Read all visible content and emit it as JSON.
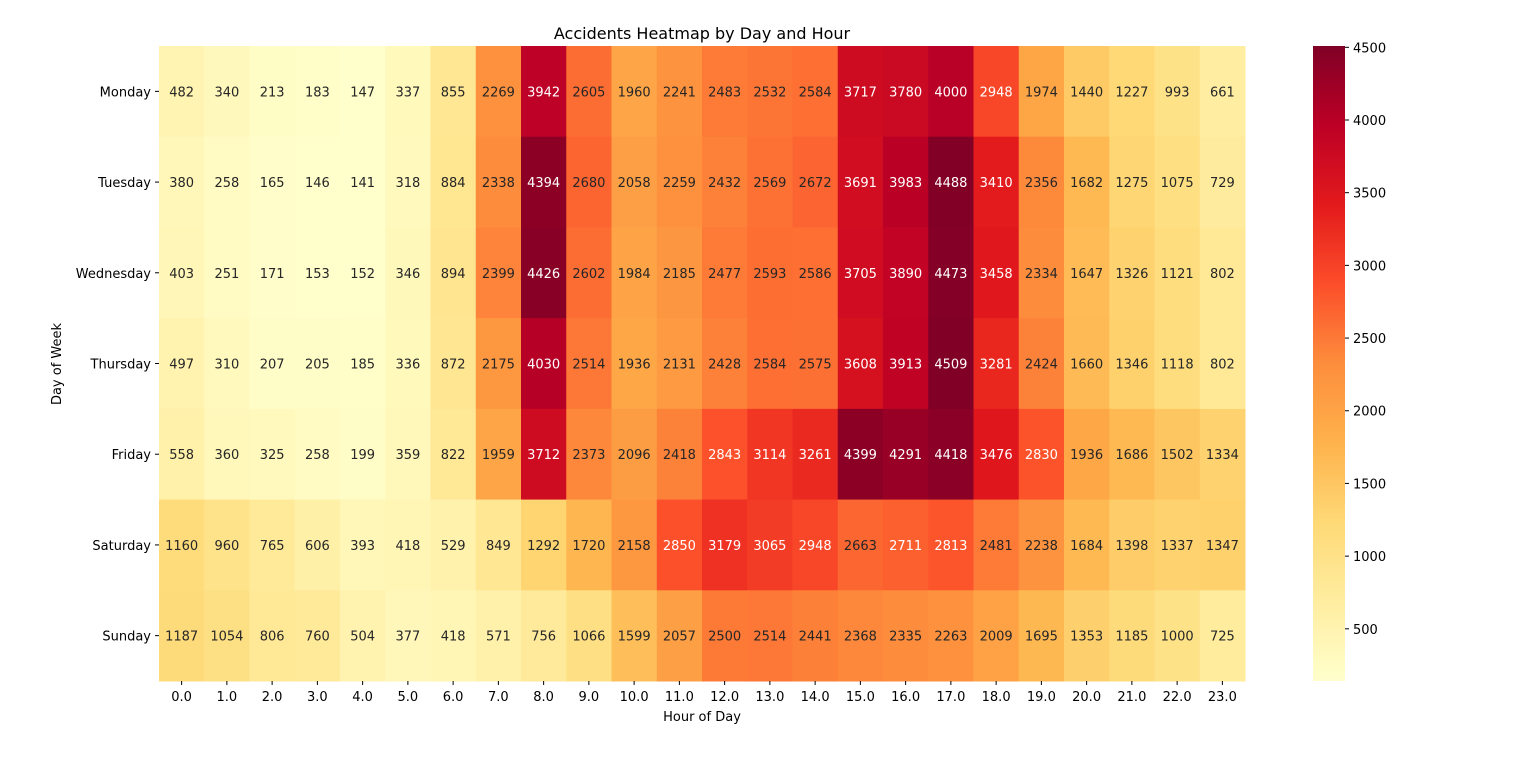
{
  "chart_data": {
    "type": "heatmap",
    "title": "Accidents Heatmap by Day and Hour",
    "xlabel": "Hour of Day",
    "ylabel": "Day of Week",
    "x_categories": [
      "0.0",
      "1.0",
      "2.0",
      "3.0",
      "4.0",
      "5.0",
      "6.0",
      "7.0",
      "8.0",
      "9.0",
      "10.0",
      "11.0",
      "12.0",
      "13.0",
      "14.0",
      "15.0",
      "16.0",
      "17.0",
      "18.0",
      "19.0",
      "20.0",
      "21.0",
      "22.0",
      "23.0"
    ],
    "y_categories": [
      "Monday",
      "Tuesday",
      "Wednesday",
      "Thursday",
      "Friday",
      "Saturday",
      "Sunday"
    ],
    "values": [
      [
        482,
        340,
        213,
        183,
        147,
        337,
        855,
        2269,
        3942,
        2605,
        1960,
        2241,
        2483,
        2532,
        2584,
        3717,
        3780,
        4000,
        2948,
        1974,
        1440,
        1227,
        993,
        661
      ],
      [
        380,
        258,
        165,
        146,
        141,
        318,
        884,
        2338,
        4394,
        2680,
        2058,
        2259,
        2432,
        2569,
        2672,
        3691,
        3983,
        4488,
        3410,
        2356,
        1682,
        1275,
        1075,
        729
      ],
      [
        403,
        251,
        171,
        153,
        152,
        346,
        894,
        2399,
        4426,
        2602,
        1984,
        2185,
        2477,
        2593,
        2586,
        3705,
        3890,
        4473,
        3458,
        2334,
        1647,
        1326,
        1121,
        802
      ],
      [
        497,
        310,
        207,
        205,
        185,
        336,
        872,
        2175,
        4030,
        2514,
        1936,
        2131,
        2428,
        2584,
        2575,
        3608,
        3913,
        4509,
        3281,
        2424,
        1660,
        1346,
        1118,
        802
      ],
      [
        558,
        360,
        325,
        258,
        199,
        359,
        822,
        1959,
        3712,
        2373,
        2096,
        2418,
        2843,
        3114,
        3261,
        4399,
        4291,
        4418,
        3476,
        2830,
        1936,
        1686,
        1502,
        1334
      ],
      [
        1160,
        960,
        765,
        606,
        393,
        418,
        529,
        849,
        1292,
        1720,
        2158,
        2850,
        3179,
        3065,
        2948,
        2663,
        2711,
        2813,
        2481,
        2238,
        1684,
        1398,
        1337,
        1347
      ],
      [
        1187,
        1054,
        806,
        760,
        504,
        377,
        418,
        571,
        756,
        1066,
        1599,
        2057,
        2500,
        2514,
        2441,
        2368,
        2335,
        2263,
        2009,
        1695,
        1353,
        1185,
        1000,
        725
      ]
    ],
    "colorbar": {
      "colormap": "YlOrRd",
      "vmin": 141,
      "vmax": 4509,
      "ticks": [
        500,
        1000,
        1500,
        2000,
        2500,
        3000,
        3500,
        4000,
        4500
      ]
    },
    "annotations_shown": true,
    "grid": false
  }
}
